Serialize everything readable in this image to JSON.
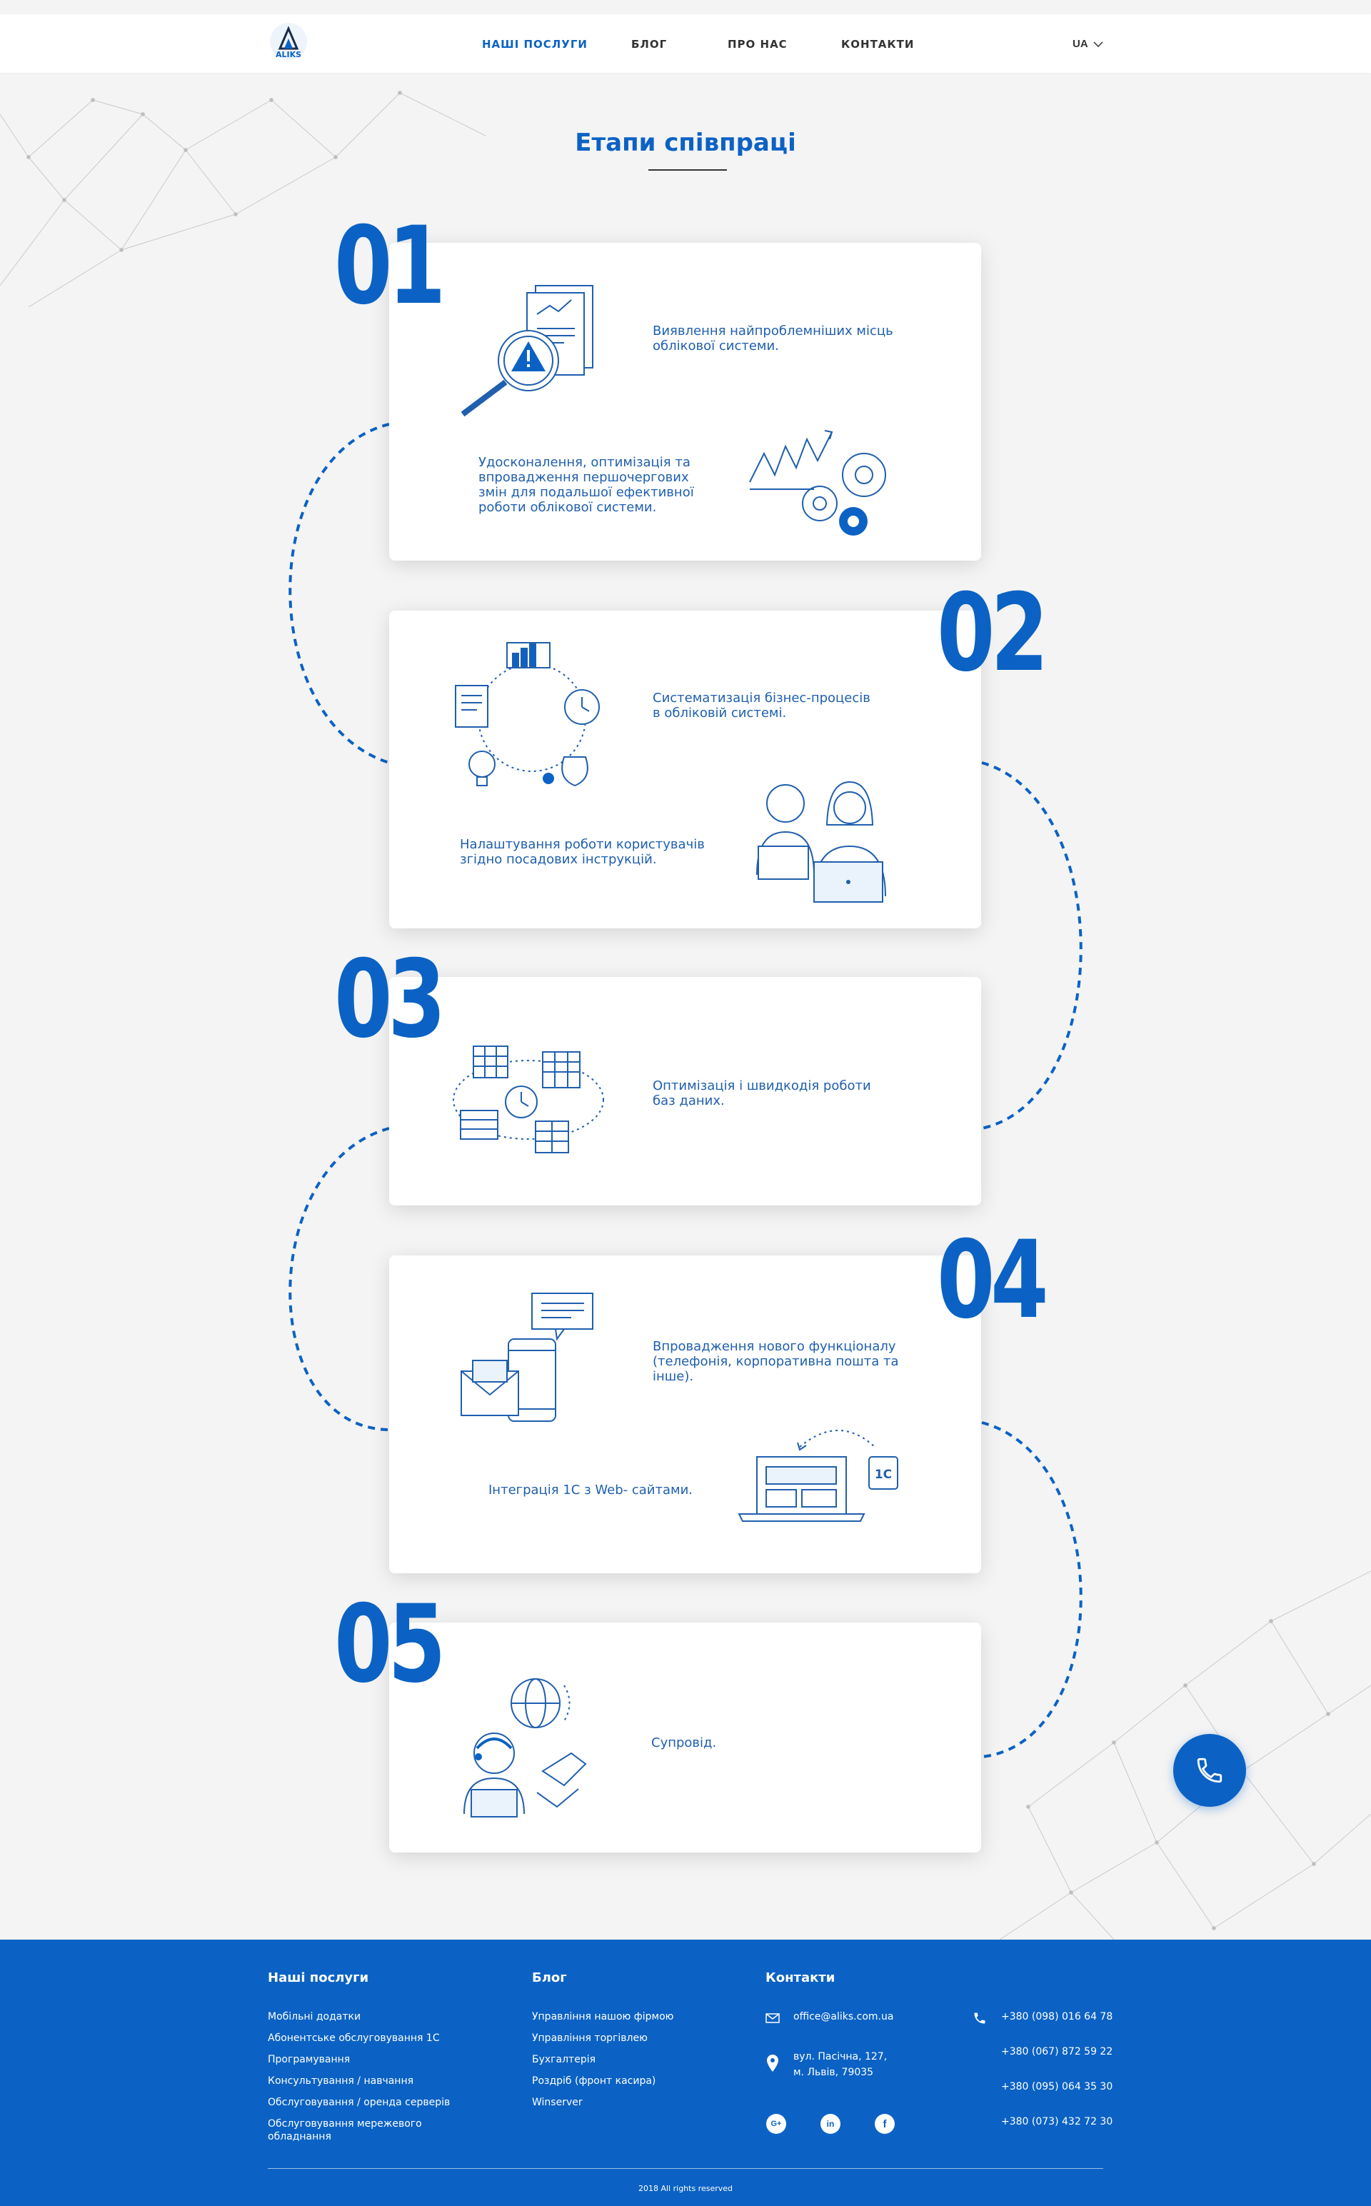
{
  "header": {
    "logo_text": "ALIKS",
    "nav": [
      "НАШІ ПОСЛУГИ",
      "БЛОГ",
      "ПРО НАС",
      "КОНТАКТИ"
    ],
    "lang": "UA"
  },
  "section": {
    "title": "Етапи співпраці"
  },
  "stages": [
    {
      "number": "01",
      "text_a": "Виявлення найпроблемніших місць\nоблікової системи.",
      "text_b": "Удосконалення, оптимізація та\nвпровадження першочергових\nзмін для подальшої  ефективної\nроботи облікової  системи."
    },
    {
      "number": "02",
      "text_a": "Систематизація бізнес-процесів\nв обліковій системі.",
      "text_b": "Налаштування роботи користувачів\nзгідно посадових інструкцій."
    },
    {
      "number": "03",
      "text_a": "Оптимізація і швидкодія роботи\nбаз даних."
    },
    {
      "number": "04",
      "text_a": "Впровадження нового функціоналу\n(телефонія, корпоративна  пошта та\nінше).",
      "text_b": "Інтеграція 1С з Web- сайтами.",
      "badge": "1С"
    },
    {
      "number": "05",
      "text_a": "Супровід."
    }
  ],
  "footer": {
    "services": {
      "title": "Наші послуги",
      "items": [
        "Мобільні додатки",
        "Абонентське обслуговування 1С",
        "Програмування",
        "Консультування / навчання",
        "Обслуговування / оренда серверів",
        "Обслуговування мережевого\nобладнання"
      ]
    },
    "blog": {
      "title": "Блог",
      "items": [
        "Управління нашою фірмою",
        "Управління торгівлею",
        "Бухгалтерія",
        "Роздріб (фронт касира)",
        "Winserver"
      ]
    },
    "contacts": {
      "title": "Контакти",
      "email": "office@aliks.com.ua",
      "address": "вул. Пасічна, 127,\nм. Львів, 79035",
      "phones": [
        "+380 (098) 016 64 78",
        "+380 (067) 872 59 22",
        "+380 (095) 064 35 30",
        "+380 (073) 432 72 30"
      ],
      "social": [
        "G+",
        "in",
        "f"
      ]
    },
    "copyright": "2018 All rights reserved"
  },
  "colors": {
    "brand_blue": "#0b62c4",
    "text_blue": "#1f5fae",
    "background": "#f4f4f4"
  },
  "icons": [
    "phone-icon",
    "email-icon",
    "location-icon",
    "chevron-down-icon"
  ]
}
